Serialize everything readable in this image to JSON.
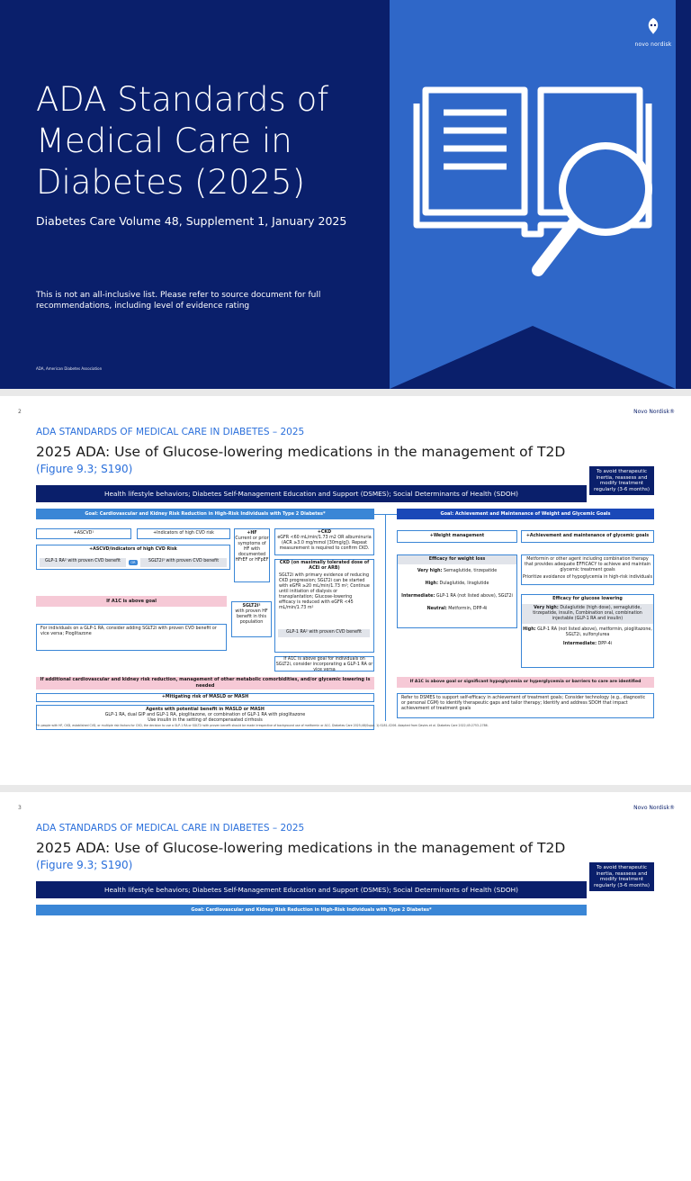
{
  "title_slide": {
    "title": "ADA Standards of Medical Care in Diabetes (2025)",
    "subtitle": "Diabetes Care Volume 48, Supplement 1, January 2025",
    "disclaimer": "This is not an all-inclusive list. Please refer to source document for full recommendations, including level of evidence rating",
    "footnote": "ADA, American Diabetes Association",
    "brand": "novo nordisk",
    "icon": "book-with-magnifier-icon",
    "colors": {
      "background": "#0a1f6b",
      "ribbon": "#2f67c8"
    }
  },
  "slide2": {
    "page": "2",
    "brand": "Novo Nordisk®",
    "section": "ADA STANDARDS OF MEDICAL CARE IN DIABETES – 2025",
    "title": "2025 ADA: Use of Glucose-lowering medications in the management of T2D",
    "figure": "(Figure 9.3; S190)",
    "avoid": "To avoid therapeutic inertia, reassess and modify treatment regularly (3-6 months)",
    "banner": "Health lifestyle behaviors; Diabetes Self-Management Education and Support (DSMES); Social Determinants of Health (SDOH)",
    "goal_left": "Goal: Cardiovascular and Kidney Risk Reduction in High-Risk Individuals with Type 2 Diabetes*",
    "goal_right": "Goal: Achievement and Maintenance of Weight and Glycemic Goals",
    "ascvd": "+ASCVD¹",
    "indicators": "+Indicators of high CVD risk",
    "ascvd_ind": "+ASCVD/indicators of high CVD Risk",
    "glp1_cvd": "GLP-1 RA² with proven CVD benefit",
    "or": "OR",
    "sglt2_cvd": "SGLT2i³ with proven CVD benefit",
    "hf": "+HF",
    "hf_text": "Current or prior symptoms of HF with documented HFrEF or HFpEF",
    "ckd": "+CKD",
    "ckd_text": "eGFR <60 mL/min/1.73 m2 OR albuminuria (ACR ≥3.0 mg/mmol [30mg/g]). Repeat measurement is required to confirm CKD.",
    "ckd_max": "CKD (on maximally tolerated dose of ACEi or ARB)",
    "ckd_list": "SGLT2i with primary evidence of reducing CKD progression; SGLT2i can be started with eGFR ≥20 mL/min/1.73 m²; Continue until initiation of dialysis or transplantation; Glucose-lowering efficacy is reduced with eGFR <45 mL/min/1.73 m²",
    "glp1_ckd": "GLP-1 RA² with proven CVD benefit",
    "sglt2": "SGLT2i²",
    "sglt2_text": "with proven HF benefit in this population",
    "if_a1c": "If A1C is above goal",
    "a1c_list": "For individuals on a GLP-1 RA, consider adding SGLT2i with proven CVD benefit or vice versa; Pioglitazone",
    "a1c_ckd": "If A1C is above goal for individuals on SGLT2i, consider incorporating a GLP-1 RA or vice versa",
    "additional": "If additional cardiovascular and kidney risk reduction, management of other metabolic comorbidities, and/or glycemic lowering is needed",
    "masld": "+Mitigating risk of MASLD or MASH",
    "agents": "Agents with potential benefit in MASLD or MASH",
    "agents_text": "GLP-1 RA, dual GIP and GLP-1 RA, pioglitazone, or combination of GLP-1 RA with pioglitazone",
    "agents_note": "Use insulin in the setting of decompensated cirrhosis",
    "weight": "+Weight management",
    "glycemic": "+Achievement and maintenance of glycemic goals",
    "efficacy_weight": "Efficacy for weight loss",
    "very_high": "Very high:",
    "very_high_val": "Semaglutide, tirzepatide",
    "high": "High:",
    "high_val": "Dulaglutide, liraglutide",
    "intermediate": "Intermediate:",
    "intermediate_val": "GLP-1 RA (not listed above), SGLT2i",
    "neutral": "Neutral:",
    "neutral_val": "Metformin, DPP-4i",
    "metformin_text": "Metformin or other agent including combination therapy that provides adequate EFFICACY to achieve and maintain glycemic treatment goals",
    "prioritize": "Prioritize avoidance of hypoglycemia in high-risk individuals",
    "efficacy_glucose": "Efficacy for glucose lowering",
    "g_very_high": "Very high:",
    "g_very_high_val": "Dulaglutide (high dose), semaglutide, tirzepatide, insulin, Combination oral, combination injectable (GLP-1 RA and insulin)",
    "g_high": "High:",
    "g_high_val": "GLP-1 RA (not listed above), metformin, pioglitazone, SGLT2i, sulfonylurea",
    "g_intermediate": "Intermediate:",
    "g_intermediate_val": "DPP-4i",
    "right_a1c": "If A1C is above goal or significant hypoglycemia or hyperglycemia or barriers to care are identified",
    "right_list": "Refer to DSMES to support self-efficacy in achievement of treatment goals; Consider technology (e.g., diagnostic or personal CGM) to identify therapeutic gaps and tailor therapy; Identify and address SDOH that impact achievement of treatment goals",
    "notes": "*In people with HF, CKD, established CVD, or multiple risk factors for CVD, the decision to use a GLP-1 RA or SGLT2i with proven benefit should be made irrespective of background use of metformin or A1C. Diabetes Care 2025;48(Suppl. 1):S181–S206. Adapted from Davies et al. Diabetes Care 2022;45:2753–2786."
  },
  "slide3": {
    "page": "3",
    "brand": "Novo Nordisk®",
    "section": "ADA STANDARDS OF MEDICAL CARE IN DIABETES – 2025",
    "title": "2025 ADA: Use of Glucose-lowering medications in the management of T2D",
    "figure": "(Figure 9.3; S190)",
    "avoid": "To avoid therapeutic inertia, reassess and modify treatment regularly (3-6 months)",
    "banner": "Health lifestyle behaviors; Diabetes Self-Management Education and Support (DSMES); Social Determinants of Health (SDOH)",
    "goal_left": "Goal: Cardiovascular and Kidney Risk Reduction in High-Risk Individuals with Type 2 Diabetes*"
  }
}
